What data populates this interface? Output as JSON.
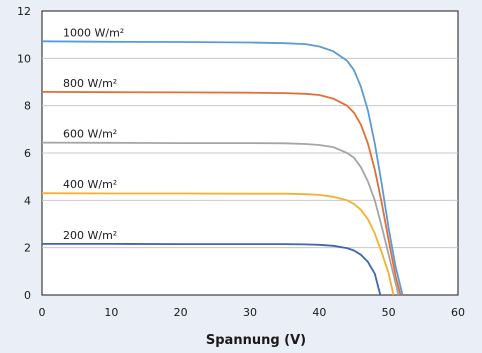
{
  "chart_data": {
    "type": "line",
    "title": "",
    "xlabel": "Spannung (V)",
    "ylabel": "",
    "xlim": [
      0,
      60
    ],
    "ylim": [
      0,
      12
    ],
    "xticks": [
      0,
      10,
      20,
      30,
      40,
      50,
      60
    ],
    "yticks": [
      0,
      2,
      4,
      6,
      8,
      10,
      12
    ],
    "grid": "horizontal",
    "series": [
      {
        "name": "1000 W/m²",
        "color": "#5b9bd5",
        "x": [
          0,
          10,
          20,
          30,
          35,
          38,
          40,
          42,
          44,
          45,
          46,
          47,
          48,
          49,
          50,
          51,
          52
        ],
        "y": [
          10.72,
          10.7,
          10.69,
          10.67,
          10.64,
          10.6,
          10.5,
          10.3,
          9.9,
          9.5,
          8.8,
          7.8,
          6.4,
          4.7,
          2.8,
          1.2,
          0
        ]
      },
      {
        "name": "800 W/m²",
        "color": "#e07038",
        "x": [
          0,
          10,
          20,
          30,
          35,
          38,
          40,
          42,
          44,
          45,
          46,
          47,
          48,
          49,
          50,
          51,
          51.7
        ],
        "y": [
          8.58,
          8.57,
          8.56,
          8.55,
          8.53,
          8.5,
          8.45,
          8.3,
          8.0,
          7.7,
          7.2,
          6.4,
          5.3,
          3.9,
          2.3,
          0.8,
          0
        ]
      },
      {
        "name": "600 W/m²",
        "color": "#a5a5a5",
        "x": [
          0,
          10,
          20,
          30,
          35,
          38,
          40,
          42,
          44,
          45,
          46,
          47,
          48,
          49,
          50,
          51,
          51.4
        ],
        "y": [
          6.44,
          6.43,
          6.42,
          6.42,
          6.41,
          6.38,
          6.34,
          6.25,
          6.0,
          5.8,
          5.4,
          4.8,
          4.0,
          2.9,
          1.7,
          0.5,
          0
        ]
      },
      {
        "name": "400 W/m²",
        "color": "#f2b134",
        "x": [
          0,
          10,
          20,
          30,
          35,
          38,
          40,
          42,
          44,
          45,
          46,
          47,
          48,
          49,
          50,
          50.7
        ],
        "y": [
          4.3,
          4.29,
          4.29,
          4.28,
          4.28,
          4.26,
          4.23,
          4.15,
          4.0,
          3.85,
          3.6,
          3.2,
          2.6,
          1.8,
          0.9,
          0
        ]
      },
      {
        "name": "200 W/m²",
        "color": "#3f65b1",
        "x": [
          0,
          10,
          20,
          30,
          35,
          38,
          40,
          42,
          44,
          45,
          46,
          47,
          48,
          48.8
        ],
        "y": [
          2.16,
          2.16,
          2.15,
          2.15,
          2.15,
          2.14,
          2.12,
          2.08,
          1.98,
          1.88,
          1.7,
          1.4,
          0.9,
          0
        ]
      }
    ]
  }
}
